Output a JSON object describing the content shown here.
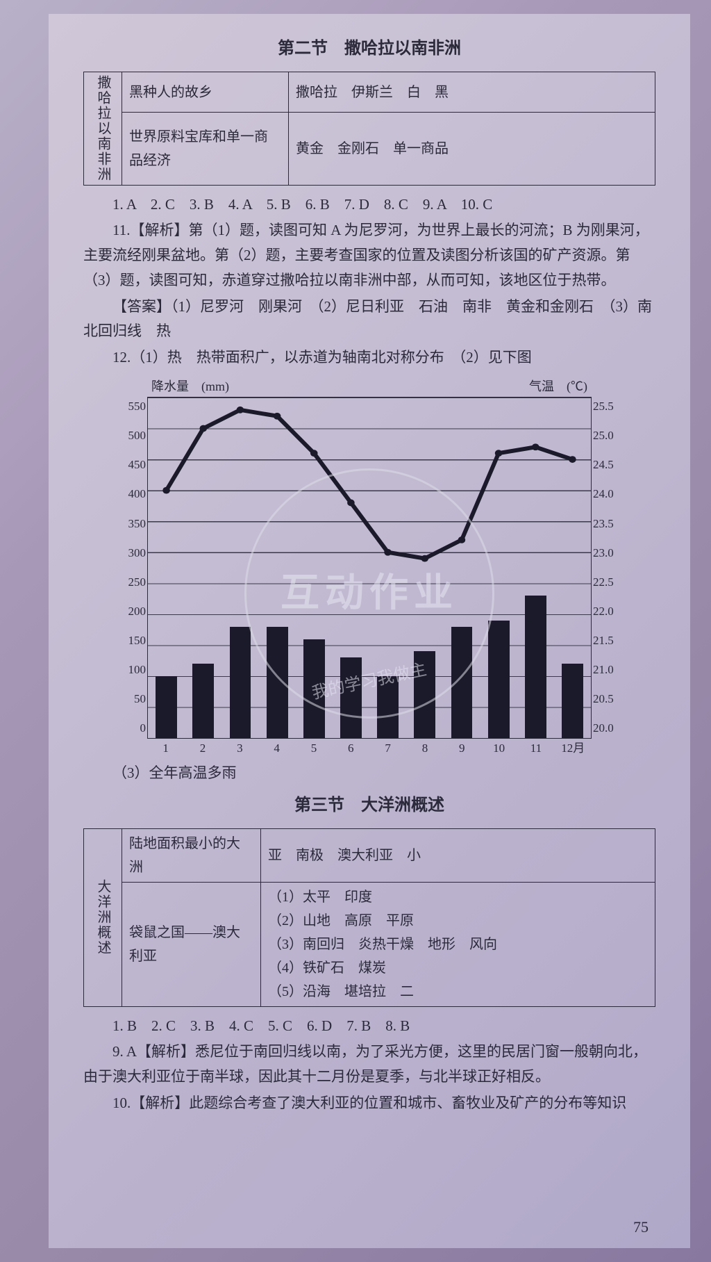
{
  "section2": {
    "title": "第二节　撒哈拉以南非洲",
    "table": {
      "leftLabel": "撒哈拉以南非洲",
      "rows": [
        {
          "c1": "黑种人的故乡",
          "c2": "撒哈拉　伊斯兰　白　黑"
        },
        {
          "c1": "世界原料宝库和单一商品经济",
          "c2": "黄金　金刚石　单一商品"
        }
      ]
    },
    "answers_line": "1. A　2. C　3. B　4. A　5. B　6. B　7. D　8. C　9. A　10. C",
    "p11a": "11.【解析】第（1）题，读图可知 A 为尼罗河，为世界上最长的河流；B 为刚果河，主要流经刚果盆地。第（2）题，主要考查国家的位置及读图分析该国的矿产资源。第（3）题，读图可知，赤道穿过撒哈拉以南非洲中部，从而可知，该地区位于热带。",
    "p11b": "【答案】（1）尼罗河　刚果河　（2）尼日利亚　石油　南非　黄金和金刚石　（3）南北回归线　热",
    "p12a": "12.（1）热　热带面积广，以赤道为轴南北对称分布　（2）见下图",
    "p12c": "（3）全年高温多雨"
  },
  "chart": {
    "left_label": "降水量　(mm)",
    "right_label": "气温　(℃)",
    "y_left_ticks": [
      "550",
      "500",
      "450",
      "400",
      "350",
      "300",
      "250",
      "200",
      "150",
      "100",
      "50",
      "0"
    ],
    "y_right_ticks": [
      "25.5",
      "25.0",
      "24.5",
      "24.0",
      "23.5",
      "23.0",
      "22.5",
      "22.0",
      "21.5",
      "21.0",
      "20.5",
      "20.0"
    ],
    "x_labels": [
      "1",
      "2",
      "3",
      "4",
      "5",
      "6",
      "7",
      "8",
      "9",
      "10",
      "11",
      "12月"
    ],
    "bar_values": [
      100,
      120,
      180,
      180,
      160,
      130,
      100,
      140,
      180,
      190,
      230,
      120
    ],
    "bar_max": 550,
    "line_temps": [
      24.0,
      25.0,
      25.3,
      25.2,
      24.6,
      23.8,
      23.0,
      22.9,
      23.2,
      24.6,
      24.7,
      24.5
    ],
    "temp_min": 20.0,
    "temp_max": 25.5,
    "bar_color": "#1a1a2a",
    "line_color": "#1a1a2a",
    "grid_color": "#3a3a4a"
  },
  "section3": {
    "title": "第三节　大洋洲概述",
    "table": {
      "leftLabel": "大洋洲概述",
      "rows": [
        {
          "c1": "陆地面积最小的大洲",
          "c2": "亚　南极　澳大利亚　小"
        },
        {
          "c1": "袋鼠之国——澳大利亚",
          "c2": "（1）太平　印度\n（2）山地　高原　平原\n（3）南回归　炎热干燥　地形　风向\n（4）铁矿石　煤炭\n（5）沿海　堪培拉　二"
        }
      ]
    },
    "answers_line": "1. B　2. C　3. B　4. C　5. C　6. D　7. B　8. B",
    "p9": "9. A【解析】悉尼位于南回归线以南，为了采光方便，这里的民居门窗一般朝向北，由于澳大利亚位于南半球，因此其十二月份是夏季，与北半球正好相反。",
    "p10": "10.【解析】此题综合考查了澳大利亚的位置和城市、畜牧业及矿产的分布等知识"
  },
  "watermark": {
    "big": "互动作业",
    "small": "我的学习我做主"
  },
  "pagenum": "75"
}
